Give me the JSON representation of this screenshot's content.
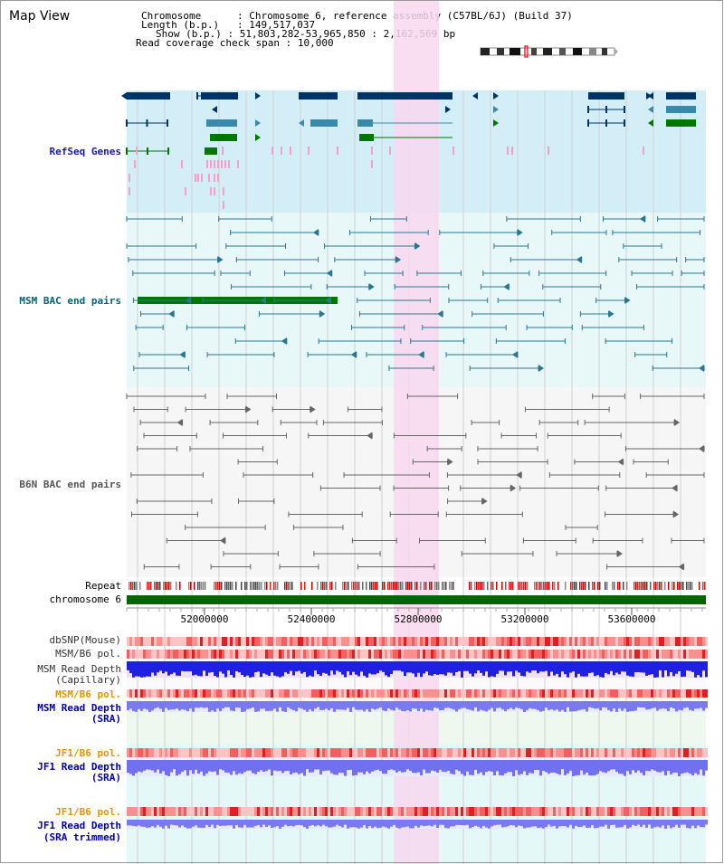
{
  "title": "Map View",
  "info": [
    {
      "key": "Chromosome",
      "value": "Chromosome 6, reference assembly (C57BL/6J) (Build 37)"
    },
    {
      "key": "Length (b.p.)",
      "value": "149,517,037"
    },
    {
      "key": "Show (b.p.)",
      "value": "51,803,282-53,965,850 : 2,162,569 bp"
    },
    {
      "key": "Read coverage check span",
      "value": "10,000"
    }
  ],
  "tracks": {
    "refseq": "RefSeq Genes",
    "msm_bac": "MSM BAC end pairs",
    "b6n_bac": "B6N BAC end pairs",
    "repeat": "Repeat",
    "chromosome": "chromosome 6",
    "dbsnp": "dbSNP(Mouse)",
    "msm_b6_pol_1": "MSM/B6 pol.",
    "msm_depth_cap_1": "MSM Read Depth",
    "msm_depth_cap_2": "(Capillary)",
    "msm_b6_pol_2": "MSM/B6 pol.",
    "msm_depth_sra_1": "MSM Read Depth",
    "msm_depth_sra_2": "(SRA)",
    "jf1_b6_pol_1": "JF1/B6 pol.",
    "jf1_depth_sra_1": "JF1 Read Depth",
    "jf1_depth_sra_2": "(SRA)",
    "jf1_b6_pol_2": "JF1/B6 pol.",
    "jf1_depth_trim_1": "JF1 Read Depth",
    "jf1_depth_trim_2": "(SRA trimmed)"
  },
  "axis": {
    "ticks": [
      "52000000",
      "52400000",
      "52800000",
      "53200000",
      "53600000"
    ]
  },
  "colors": {
    "refseq_label": "#1a1aaa",
    "msm_label": "#006677",
    "b6n_label": "#555555",
    "orange": "#e89400",
    "darkblue": "#0000aa",
    "gene_dark": "#003366",
    "gene_mid": "#3a88aa",
    "gene_green": "#007700",
    "highlight": "#f8d8f0"
  }
}
